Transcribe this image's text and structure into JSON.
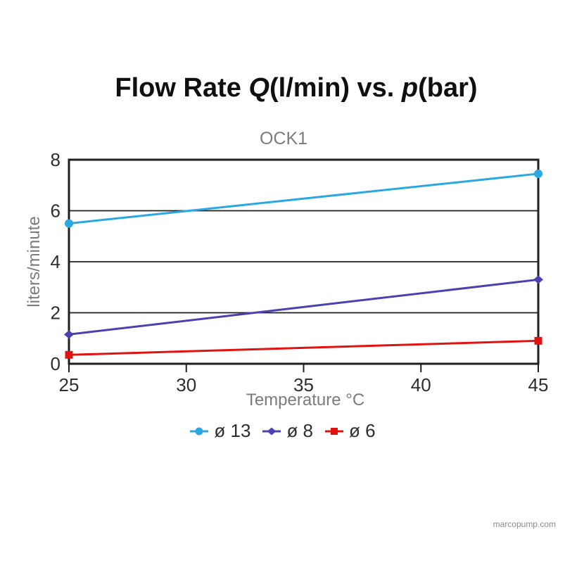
{
  "page": {
    "background": "#ffffff",
    "watermark": "marcopump.com"
  },
  "title": {
    "text": "Flow Rate Q(l/min) vs. p(bar)",
    "parts": [
      {
        "text": "Flow Rate ",
        "italic": false
      },
      {
        "text": "Q",
        "italic": true
      },
      {
        "text": "(l/min) vs. ",
        "italic": false
      },
      {
        "text": "p",
        "italic": true
      },
      {
        "text": "(bar)",
        "italic": false
      }
    ]
  },
  "chart_data": {
    "type": "line",
    "title": "Flow Rate Q(l/min) vs. p(bar)",
    "subtitle": "OCK1",
    "xlabel": "Temperature °C",
    "ylabel": "liters/minute",
    "x": [
      25,
      45
    ],
    "xlim": [
      25,
      45
    ],
    "ylim": [
      0,
      8
    ],
    "x_ticks": [
      25,
      30,
      35,
      40,
      45
    ],
    "y_ticks": [
      0,
      2,
      4,
      6,
      8
    ],
    "grid": "horizontal-only",
    "legend_position": "bottom-center",
    "axis_color": "#1f1f1f",
    "tick_label_color": "#2e2e2e",
    "axis_title_color": "#7b7b7b",
    "series": [
      {
        "name": "ø 13",
        "marker": "circle",
        "color": "#29A8E2",
        "values": [
          5.5,
          7.45
        ]
      },
      {
        "name": "ø 8",
        "marker": "diamond",
        "color": "#4B41B3",
        "values": [
          1.15,
          3.3
        ]
      },
      {
        "name": "ø 6",
        "marker": "square",
        "color": "#E01311",
        "values": [
          0.35,
          0.9
        ]
      }
    ]
  }
}
